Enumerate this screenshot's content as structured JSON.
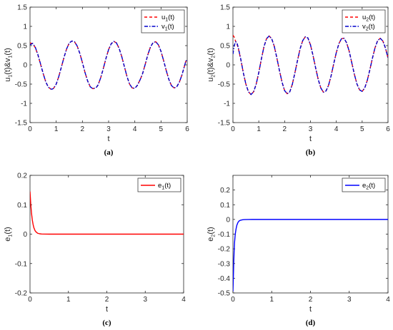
{
  "chart_data": [
    {
      "type": "line",
      "caption": "(a)",
      "xlabel": "t",
      "ylabel": "u1(t)&v1(t)",
      "ylabel_parts": [
        "u",
        "1",
        "(t)&v",
        "1",
        "(t)"
      ],
      "xlim": [
        0,
        6
      ],
      "ylim": [
        -1.5,
        1.5
      ],
      "xticks": [
        "0",
        "1",
        "2",
        "3",
        "4",
        "5",
        "6"
      ],
      "yticks": [
        "-1.5",
        "-1",
        "-0.5",
        "0",
        "0.5",
        "1",
        "1.5"
      ],
      "grid": false,
      "legend_position": "top-right",
      "series": [
        {
          "name": "u1(t)",
          "name_parts": [
            "u",
            "1",
            "(t)"
          ],
          "color": "#ff0000",
          "style": "dashed",
          "x": [
            0,
            0.1,
            0.2,
            0.3,
            0.4,
            0.5,
            0.6,
            0.7,
            0.8,
            0.85,
            0.9,
            1.0,
            1.1,
            1.2,
            1.3,
            1.4,
            1.5,
            1.6,
            1.7,
            1.8,
            1.9,
            2.0,
            2.1,
            2.2,
            2.3,
            2.4,
            2.5,
            2.55,
            2.6,
            2.7,
            2.8,
            2.9,
            3.0,
            3.1,
            3.2,
            3.3,
            3.4,
            3.5,
            3.6,
            3.7,
            3.8,
            3.9,
            4.0,
            4.1,
            4.2,
            4.25,
            4.3,
            4.4,
            4.5,
            4.6,
            4.7,
            4.8,
            4.9,
            5.0,
            5.1,
            5.2,
            5.3,
            5.4,
            5.5,
            5.6,
            5.7,
            5.8,
            5.9,
            5.95,
            6.0
          ],
          "y": [
            0.57,
            0.55,
            0.45,
            0.26,
            0.02,
            -0.22,
            -0.44,
            -0.58,
            -0.63,
            -0.63,
            -0.61,
            -0.5,
            -0.3,
            -0.05,
            0.2,
            0.42,
            0.57,
            0.62,
            0.6,
            0.49,
            0.3,
            0.06,
            -0.2,
            -0.42,
            -0.57,
            -0.62,
            -0.6,
            -0.57,
            -0.52,
            -0.33,
            -0.09,
            0.17,
            0.4,
            0.55,
            0.61,
            0.57,
            0.43,
            0.22,
            -0.04,
            -0.3,
            -0.5,
            -0.6,
            -0.61,
            -0.53,
            -0.39,
            -0.31,
            -0.22,
            0.02,
            0.27,
            0.47,
            0.58,
            0.6,
            0.52,
            0.35,
            0.11,
            -0.15,
            -0.38,
            -0.54,
            -0.6,
            -0.57,
            -0.45,
            -0.26,
            -0.02,
            0.1,
            0.12
          ]
        },
        {
          "name": "v1(t)",
          "name_parts": [
            "v",
            "1",
            "(t)"
          ],
          "color": "#0000cc",
          "style": "dashdot",
          "x": [
            0,
            0.1,
            0.2,
            0.3,
            0.4,
            0.5,
            0.6,
            0.7,
            0.8,
            0.85,
            0.9,
            1.0,
            1.1,
            1.2,
            1.3,
            1.4,
            1.5,
            1.6,
            1.7,
            1.8,
            1.9,
            2.0,
            2.1,
            2.2,
            2.3,
            2.4,
            2.5,
            2.55,
            2.6,
            2.7,
            2.8,
            2.9,
            3.0,
            3.1,
            3.2,
            3.3,
            3.4,
            3.5,
            3.6,
            3.7,
            3.8,
            3.9,
            4.0,
            4.1,
            4.2,
            4.25,
            4.3,
            4.4,
            4.5,
            4.6,
            4.7,
            4.8,
            4.9,
            5.0,
            5.1,
            5.2,
            5.3,
            5.4,
            5.5,
            5.6,
            5.7,
            5.8,
            5.9,
            5.95,
            6.0
          ],
          "y": [
            0.52,
            0.56,
            0.46,
            0.27,
            0.03,
            -0.22,
            -0.44,
            -0.58,
            -0.63,
            -0.63,
            -0.61,
            -0.5,
            -0.3,
            -0.05,
            0.2,
            0.42,
            0.57,
            0.62,
            0.6,
            0.49,
            0.3,
            0.06,
            -0.2,
            -0.42,
            -0.57,
            -0.62,
            -0.6,
            -0.57,
            -0.52,
            -0.33,
            -0.09,
            0.17,
            0.4,
            0.55,
            0.61,
            0.57,
            0.43,
            0.22,
            -0.04,
            -0.3,
            -0.5,
            -0.6,
            -0.61,
            -0.53,
            -0.39,
            -0.31,
            -0.22,
            0.02,
            0.27,
            0.47,
            0.58,
            0.6,
            0.52,
            0.35,
            0.11,
            -0.15,
            -0.38,
            -0.54,
            -0.6,
            -0.57,
            -0.45,
            -0.26,
            -0.02,
            0.1,
            0.12
          ]
        }
      ]
    },
    {
      "type": "line",
      "caption": "(b)",
      "xlabel": "t",
      "ylabel": "u2(t)&v2(t)",
      "ylabel_parts": [
        "u",
        "2",
        "(t)&v",
        "2",
        "(t)"
      ],
      "xlim": [
        0,
        6
      ],
      "ylim": [
        -1.5,
        1.5
      ],
      "xticks": [
        "0",
        "1",
        "2",
        "3",
        "4",
        "5",
        "6"
      ],
      "yticks": [
        "-1.5",
        "-1",
        "-0.5",
        "0",
        "0.5",
        "1",
        "1.5"
      ],
      "grid": false,
      "legend_position": "top-right",
      "series": [
        {
          "name": "u2(t)",
          "name_parts": [
            "u",
            "2",
            "(t)"
          ],
          "color": "#ff0000",
          "style": "dashed",
          "x": [
            0,
            0.05,
            0.1,
            0.15,
            0.2,
            0.3,
            0.4,
            0.5,
            0.6,
            0.7,
            0.8,
            0.9,
            1.0,
            1.1,
            1.2,
            1.3,
            1.4,
            1.5,
            1.6,
            1.7,
            1.8,
            1.9,
            2.0,
            2.1,
            2.2,
            2.3,
            2.4,
            2.5,
            2.6,
            2.7,
            2.8,
            2.9,
            3.0,
            3.1,
            3.2,
            3.3,
            3.4,
            3.5,
            3.6,
            3.7,
            3.8,
            3.9,
            4.0,
            4.1,
            4.2,
            4.3,
            4.4,
            4.5,
            4.6,
            4.7,
            4.8,
            4.9,
            5.0,
            5.1,
            5.2,
            5.3,
            5.4,
            5.5,
            5.6,
            5.7,
            5.8,
            5.9,
            6.0
          ],
          "y": [
            0.77,
            0.72,
            0.62,
            0.55,
            0.45,
            0.15,
            -0.2,
            -0.5,
            -0.7,
            -0.77,
            -0.7,
            -0.5,
            -0.2,
            0.15,
            0.47,
            0.68,
            0.75,
            0.68,
            0.48,
            0.18,
            -0.15,
            -0.45,
            -0.67,
            -0.75,
            -0.7,
            -0.5,
            -0.2,
            0.12,
            0.42,
            0.63,
            0.73,
            0.7,
            0.52,
            0.24,
            -0.08,
            -0.38,
            -0.6,
            -0.71,
            -0.68,
            -0.53,
            -0.28,
            0.03,
            0.32,
            0.55,
            0.68,
            0.69,
            0.57,
            0.35,
            0.05,
            -0.25,
            -0.5,
            -0.65,
            -0.69,
            -0.6,
            -0.4,
            -0.12,
            0.18,
            0.45,
            0.63,
            0.69,
            0.62,
            0.44,
            0.18
          ]
        },
        {
          "name": "v2(t)",
          "name_parts": [
            "v",
            "2",
            "(t)"
          ],
          "color": "#0000cc",
          "style": "dashdot",
          "x": [
            0,
            0.05,
            0.1,
            0.15,
            0.2,
            0.3,
            0.4,
            0.5,
            0.6,
            0.7,
            0.8,
            0.9,
            1.0,
            1.1,
            1.2,
            1.3,
            1.4,
            1.5,
            1.6,
            1.7,
            1.8,
            1.9,
            2.0,
            2.1,
            2.2,
            2.3,
            2.4,
            2.5,
            2.6,
            2.7,
            2.8,
            2.9,
            3.0,
            3.1,
            3.2,
            3.3,
            3.4,
            3.5,
            3.6,
            3.7,
            3.8,
            3.9,
            4.0,
            4.1,
            4.2,
            4.3,
            4.4,
            4.5,
            4.6,
            4.7,
            4.8,
            4.9,
            5.0,
            5.1,
            5.2,
            5.3,
            5.4,
            5.5,
            5.6,
            5.7,
            5.8,
            5.9,
            6.0
          ],
          "y": [
            0.28,
            0.5,
            0.6,
            0.58,
            0.47,
            0.16,
            -0.2,
            -0.5,
            -0.7,
            -0.77,
            -0.7,
            -0.5,
            -0.2,
            0.15,
            0.47,
            0.68,
            0.75,
            0.68,
            0.48,
            0.18,
            -0.15,
            -0.45,
            -0.67,
            -0.75,
            -0.7,
            -0.5,
            -0.2,
            0.12,
            0.42,
            0.63,
            0.73,
            0.7,
            0.52,
            0.24,
            -0.08,
            -0.38,
            -0.6,
            -0.71,
            -0.68,
            -0.53,
            -0.28,
            0.03,
            0.32,
            0.55,
            0.68,
            0.69,
            0.57,
            0.35,
            0.05,
            -0.25,
            -0.5,
            -0.65,
            -0.69,
            -0.6,
            -0.4,
            -0.12,
            0.18,
            0.45,
            0.63,
            0.69,
            0.62,
            0.44,
            0.18
          ]
        }
      ]
    },
    {
      "type": "line",
      "caption": "(c)",
      "xlabel": "t",
      "ylabel": "e1(t)",
      "ylabel_parts": [
        "e",
        "1",
        "(t)"
      ],
      "xlim": [
        0,
        4
      ],
      "ylim": [
        -0.2,
        0.2
      ],
      "xticks": [
        "0",
        "1",
        "2",
        "3",
        "4"
      ],
      "yticks": [
        "-0.2",
        "-0.1",
        "0",
        "0.1",
        "0.2"
      ],
      "grid": false,
      "legend_position": "top-right",
      "series": [
        {
          "name": "e1(t)",
          "name_parts": [
            "e",
            "1",
            "(t)"
          ],
          "color": "#ff0000",
          "style": "solid",
          "x": [
            0,
            0.02,
            0.04,
            0.06,
            0.08,
            0.1,
            0.13,
            0.16,
            0.2,
            0.25,
            0.3,
            0.4,
            0.5,
            1,
            2,
            3,
            4
          ],
          "y": [
            0.145,
            0.1,
            0.07,
            0.048,
            0.033,
            0.022,
            0.012,
            0.007,
            0.003,
            0.0012,
            0.0005,
            0.0001,
            0,
            0,
            0,
            0,
            0
          ]
        }
      ]
    },
    {
      "type": "line",
      "caption": "(d)",
      "xlabel": "t",
      "ylabel": "e2(t)",
      "ylabel_parts": [
        "e",
        "2",
        "(t)"
      ],
      "xlim": [
        0,
        4
      ],
      "ylim": [
        -0.5,
        0.3
      ],
      "xticks": [
        "0",
        "1",
        "2",
        "3",
        "4"
      ],
      "yticks": [
        "-0.5",
        "-0.4",
        "-0.3",
        "-0.2",
        "-0.1",
        "0",
        "0.1",
        "0.2"
      ],
      "grid": false,
      "legend_position": "top-right",
      "series": [
        {
          "name": "e2(t)",
          "name_parts": [
            "e",
            "2",
            "(t)"
          ],
          "color": "#0000ff",
          "style": "solid",
          "x": [
            0,
            0.01,
            0.02,
            0.03,
            0.04,
            0.06,
            0.08,
            0.1,
            0.13,
            0.16,
            0.2,
            0.25,
            0.3,
            0.4,
            0.5,
            1,
            2,
            3,
            4
          ],
          "y": [
            -0.49,
            -0.4,
            -0.3,
            -0.22,
            -0.16,
            -0.1,
            -0.065,
            -0.04,
            -0.02,
            -0.01,
            -0.005,
            -0.002,
            -0.0008,
            -0.0001,
            0,
            0,
            0,
            0,
            0
          ]
        }
      ]
    }
  ]
}
